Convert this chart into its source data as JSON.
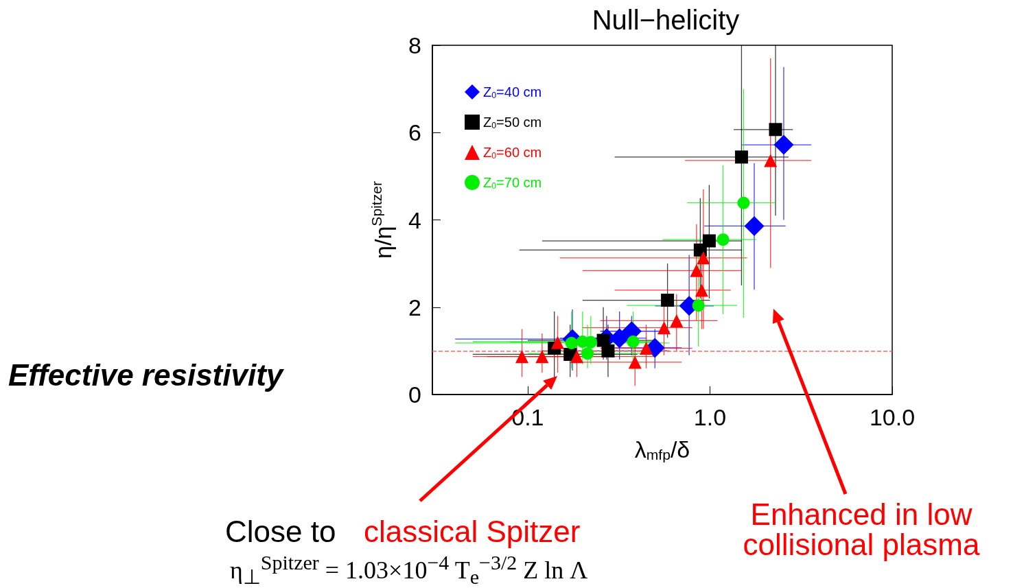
{
  "chart_data": {
    "type": "scatter",
    "title": "Null−helicity",
    "xlabel": "λ$_{mfp}$/δ",
    "ylabel": "η/η$^{Spitzer}$",
    "log": "x",
    "xlim": [
      0.03,
      10
    ],
    "xticks": [
      0.1,
      {
        "value": 1,
        "label": "1.0"
      },
      {
        "value": 10,
        "label": "10.0"
      }
    ],
    "ylim": [
      0,
      8
    ],
    "yticks": [
      0,
      2,
      4,
      6,
      8
    ],
    "grid": false,
    "legend": "top left",
    "series": [
      {
        "name": "Z$_{0}$=40 cm",
        "color": "#0000ff",
        "marker": "diamond",
        "x": [
          0.176,
          0.271,
          0.319,
          0.372,
          0.499,
          0.769,
          1.75,
          2.54
        ],
        "values": [
          1.27,
          1.29,
          1.29,
          1.45,
          1.07,
          2.03,
          3.86,
          5.72
        ],
        "errors": [
          [
            0.55,
            1.95
          ],
          [
            0.8,
            1.8
          ],
          [
            0.8,
            1.9
          ],
          [
            0.9,
            1.8
          ],
          [
            0.6,
            1.5
          ],
          [
            0.9,
            3.2
          ],
          [
            2.4,
            5.3
          ],
          [
            4.0,
            7.5
          ]
        ],
        "xerrors": [
          [
            0.04,
            0.4
          ],
          [
            0.15,
            0.4
          ],
          [
            0.2,
            0.45
          ],
          [
            0.25,
            0.6
          ],
          [
            0.3,
            0.7
          ],
          [
            0.5,
            1.05
          ],
          [
            0.93,
            2.6
          ],
          [
            1.5,
            3.6
          ]
        ]
      },
      {
        "name": "Z$_{0}$=50 cm",
        "color": "#000000",
        "marker": "square",
        "x": [
          0.14,
          0.171,
          0.26,
          0.276,
          0.585,
          0.885,
          0.991,
          1.49,
          2.29
        ],
        "values": [
          1.06,
          0.92,
          1.24,
          1.0,
          2.16,
          3.31,
          3.52,
          5.44,
          6.07
        ],
        "errors": [
          [
            0.3,
            1.9
          ],
          [
            0.4,
            1.6
          ],
          [
            0.8,
            2.0
          ],
          [
            0.4,
            1.6
          ],
          [
            1.3,
            3.0
          ],
          [
            2.2,
            4.5
          ],
          [
            2.2,
            4.8
          ],
          [
            2.5,
            8
          ],
          [
            4.1,
            8
          ]
        ],
        "xerrors": [
          null,
          [
            0.05,
            0.4
          ],
          [
            0.1,
            0.5
          ],
          [
            0.12,
            0.6
          ],
          [
            0.2,
            1.0
          ],
          [
            0.09,
            1.5
          ],
          [
            0.12,
            1.5
          ],
          [
            0.3,
            2.7
          ],
          [
            1.35,
            2.85
          ]
        ]
      },
      {
        "name": "Z$_{0}$=60 cm",
        "color": "#ff0000",
        "marker": "triangle",
        "x": [
          0.093,
          0.12,
          0.146,
          0.186,
          0.388,
          0.447,
          0.56,
          0.656,
          0.844,
          0.901,
          0.92,
          2.15
        ],
        "values": [
          0.87,
          0.87,
          1.19,
          0.87,
          0.74,
          1.06,
          1.53,
          1.69,
          2.84,
          2.39,
          3.13,
          5.36
        ],
        "errors": [
          [
            0.4,
            1.5
          ],
          [
            0.5,
            1.4
          ],
          [
            0.5,
            1.8
          ],
          [
            0.4,
            1.4
          ],
          [
            0.2,
            1.4
          ],
          [
            0.6,
            1.6
          ],
          [
            0.9,
            2.3
          ],
          [
            1.0,
            2.3
          ],
          [
            1.7,
            3.9
          ],
          [
            1.5,
            3.3
          ],
          [
            1.5,
            4.7
          ],
          [
            2.9,
            7.7
          ]
        ],
        "xerrors": [
          [
            0.05,
            0.2
          ],
          [
            0.06,
            0.3
          ],
          null,
          [
            0.1,
            0.5
          ],
          [
            0.2,
            0.7
          ],
          [
            0.25,
            0.8
          ],
          [
            0.2,
            0.8
          ],
          [
            0.25,
            1.1
          ],
          [
            0.2,
            1.5
          ],
          [
            0.3,
            1.3
          ],
          [
            0.15,
            1.6
          ],
          [
            0.73,
            3.6
          ]
        ]
      },
      {
        "name": "Z$_{0}$=70 cm",
        "color": "#00ee00",
        "marker": "circle",
        "x": [
          0.174,
          0.2,
          0.222,
          0.213,
          0.379,
          0.865,
          1.18,
          1.53
        ],
        "values": [
          1.18,
          1.21,
          1.2,
          0.94,
          1.21,
          2.04,
          3.55,
          4.39
        ],
        "errors": [
          [
            0.6,
            1.9
          ],
          [
            0.7,
            1.9
          ],
          [
            0.7,
            1.8
          ],
          [
            0.6,
            1.6
          ],
          [
            0.8,
            1.9
          ],
          [
            1.1,
            3.2
          ],
          [
            1.84,
            5.25
          ],
          [
            1.76,
            7.0
          ]
        ],
        "xerrors": [
          [
            0.04,
            0.6
          ],
          [
            0.05,
            0.5
          ],
          [
            0.08,
            0.5
          ],
          [
            0.1,
            0.45
          ],
          null,
          [
            0.35,
            1.41
          ],
          [
            0.55,
            1.79
          ],
          [
            0.75,
            2.3
          ]
        ]
      }
    ],
    "ref_lines": [
      {
        "axis": "y",
        "value": 1,
        "color": "#ff6666",
        "line_style": "dashed"
      }
    ],
    "annotations": [
      "Effective resistivity",
      "Close to",
      "classical Spitzer",
      "η$_{⊥}$$^{Spitzer}$ = 1.03×10$^{−4}$ T$_{e}$$^{−3/2}$ Z ln Λ",
      "Enhanced in low collisional plasma"
    ]
  }
}
